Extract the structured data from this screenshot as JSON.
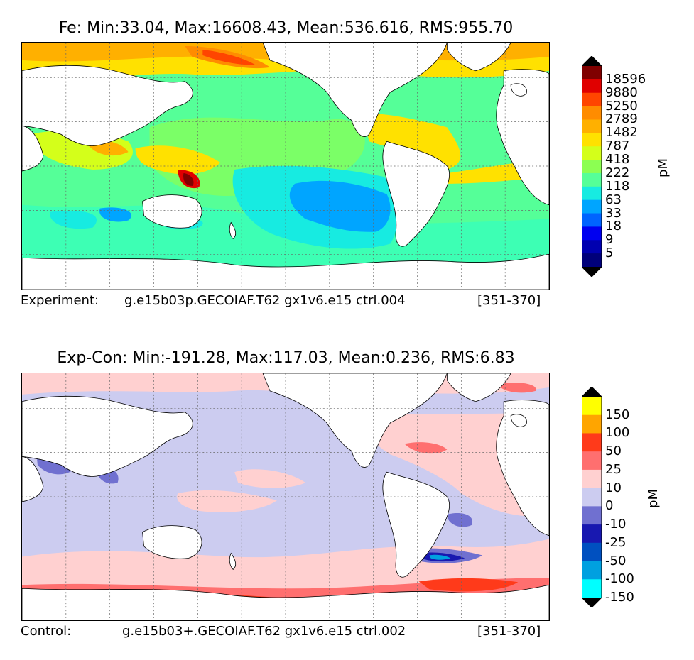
{
  "top_panel": {
    "title": "Fe: Min:33.04, Max:16608.43, Mean:536.616, RMS:955.70",
    "caption_label": "Experiment:",
    "caption_case": "g.e15b03p.GECOIAF.T62 gx1v6.e15 ctrl.004",
    "caption_years": "[351-370]",
    "colorbar": {
      "unit": "pM",
      "ticks": [
        "18596",
        "9880",
        "5250",
        "2789",
        "1482",
        "787",
        "418",
        "222",
        "118",
        "63",
        "33",
        "18",
        "9",
        "5"
      ],
      "colors": [
        "#800000",
        "#e00000",
        "#ff4500",
        "#ff8c00",
        "#ffb000",
        "#ffe100",
        "#d4ff1a",
        "#8cff52",
        "#55ff98",
        "#17ebe1",
        "#00a5ff",
        "#0064ff",
        "#0000f0",
        "#0000b0",
        "#00007a"
      ],
      "over_color": "#000000",
      "under_color": "#000000"
    }
  },
  "bottom_panel": {
    "title": "Exp-Con: Min:-191.28, Max:117.03, Mean:0.236, RMS:6.83",
    "caption_label": "Control:",
    "caption_case": "g.e15b03+.GECOIAF.T62 gx1v6.e15 ctrl.002",
    "caption_years": "[351-370]",
    "colorbar": {
      "unit": "pM",
      "ticks": [
        "150",
        "100",
        "50",
        "25",
        "10",
        "0",
        "-10",
        "-25",
        "-50",
        "-100",
        "-150"
      ],
      "colors": [
        "#ffff00",
        "#ffa500",
        "#ff3a1a",
        "#ff6f6f",
        "#ffd0d0",
        "#ccccf0",
        "#7070d0",
        "#1818b0",
        "#0050c0",
        "#00a0e0",
        "#00ffff"
      ],
      "over_color": "#000000",
      "under_color": "#000000"
    }
  }
}
